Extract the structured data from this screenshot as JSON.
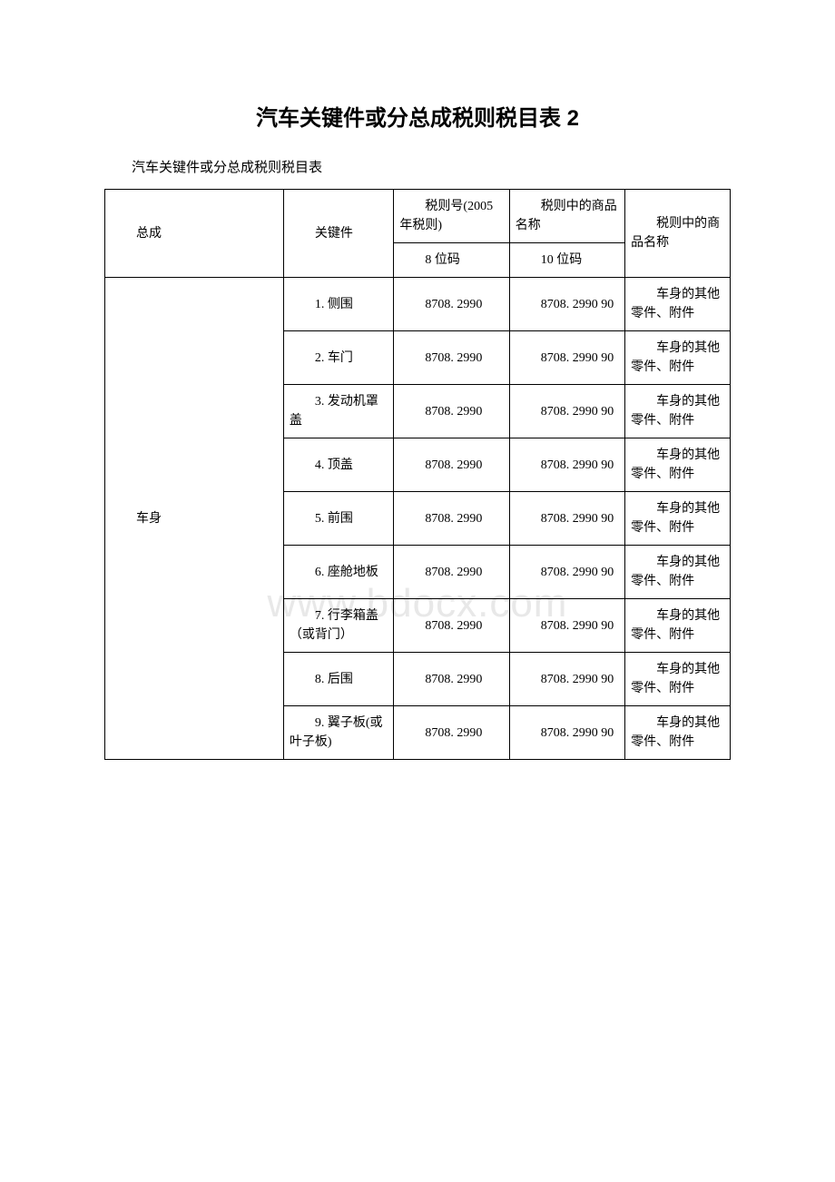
{
  "title": "汽车关键件或分总成税则税目表 2",
  "subtitle": "汽车关键件或分总成税则税目表",
  "watermark": "www.bdocx.com",
  "headers": {
    "assembly": "总成",
    "key_part": "关键件",
    "code_title": "税则号(2005 年税则)",
    "name_title_a": "税则中的商品名称",
    "name_title_b": "税则中的商品名称",
    "code8": "8 位码",
    "code10": "10 位码"
  },
  "assembly_label": "车身",
  "rows": [
    {
      "key": "1. 侧围",
      "code8": "8708. 2990",
      "code10": "8708. 2990 90",
      "name": "车身的其他零件、附件"
    },
    {
      "key": "2. 车门",
      "code8": "8708. 2990",
      "code10": "8708. 2990 90",
      "name": "车身的其他零件、附件"
    },
    {
      "key": "3. 发动机罩盖",
      "code8": "8708. 2990",
      "code10": "8708. 2990 90",
      "name": "车身的其他零件、附件"
    },
    {
      "key": "4. 顶盖",
      "code8": "8708. 2990",
      "code10": "8708. 2990 90",
      "name": "车身的其他零件、附件"
    },
    {
      "key": "5. 前围",
      "code8": "8708. 2990",
      "code10": "8708. 2990 90",
      "name": "车身的其他零件、附件"
    },
    {
      "key": "6. 座舱地板",
      "code8": "8708. 2990",
      "code10": "8708. 2990 90",
      "name": "车身的其他零件、附件"
    },
    {
      "key": "7. 行李箱盖（或背门）",
      "code8": "8708. 2990",
      "code10": "8708. 2990 90",
      "name": "车身的其他零件、附件"
    },
    {
      "key": "8. 后围",
      "code8": "8708. 2990",
      "code10": "8708. 2990 90",
      "name": "车身的其他零件、附件"
    },
    {
      "key": "9. 翼子板(或叶子板)",
      "code8": "8708. 2990",
      "code10": "8708. 2990 90",
      "name": "车身的其他零件、附件"
    }
  ],
  "styles": {
    "background_color": "#ffffff",
    "border_color": "#000000",
    "text_color": "#000000",
    "watermark_color": "#e8e8e8",
    "title_fontsize": 24,
    "body_fontsize": 14
  }
}
